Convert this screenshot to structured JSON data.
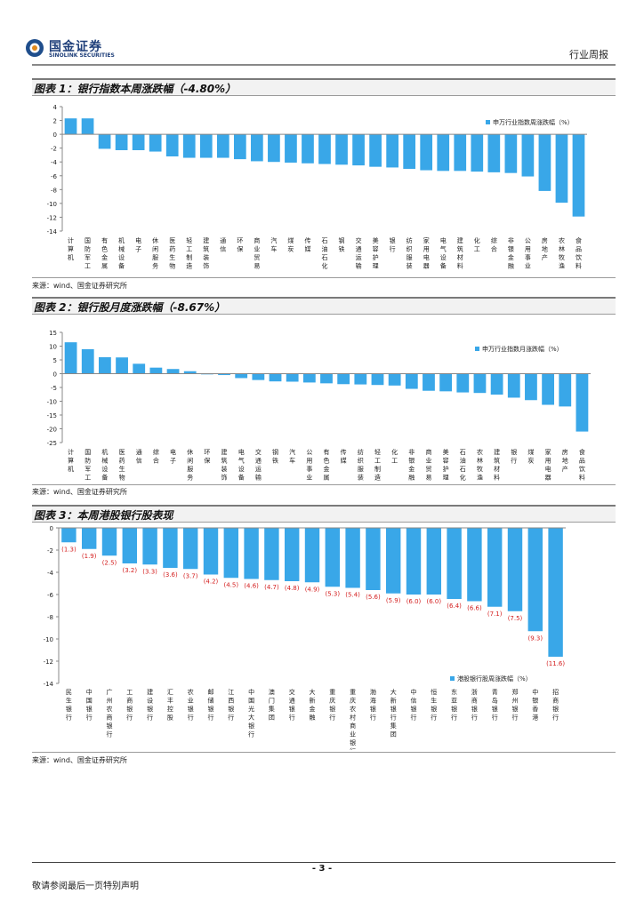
{
  "header": {
    "logo_cn": "国金证券",
    "logo_en": "SINOLINK SECURITIES",
    "report_type": "行业周报"
  },
  "figure1": {
    "title": "图表 1：银行指数本周涨跌幅（-4.80%）",
    "source": "来源：wind、国金证券研究所"
  },
  "figure2": {
    "title": "图表 2：银行股月度涨跌幅（-8.67%）",
    "source": "来源：wind、国金证券研究所"
  },
  "figure3": {
    "title": "图表 3：本周港股银行股表现",
    "source": "来源：wind、国金证券研究所"
  },
  "footer": {
    "page_number": "- 3 -",
    "disclaimer": "敬请参阅最后一页特别声明"
  },
  "colors": {
    "bar": "#39a7e8",
    "label_red": "#d42020"
  },
  "chart_data": [
    {
      "type": "bar",
      "title": "银行指数本周涨跌幅（-4.80%）",
      "legend": "申万行业指数周涨跌幅（%）",
      "legend_position": "top-right",
      "ylim": [
        -14,
        4
      ],
      "yticks": [
        4,
        2,
        0,
        -2,
        -4,
        -6,
        -8,
        -10,
        -12,
        -14
      ],
      "categories": [
        "计算机",
        "国防军工",
        "有色金属",
        "机械设备",
        "电子",
        "休闲服务",
        "医药生物",
        "轻工制造",
        "建筑装饰",
        "通信",
        "环保",
        "商业贸易",
        "汽车",
        "煤炭",
        "传媒",
        "石油石化",
        "钢铁",
        "交通运输",
        "美容护理",
        "银行",
        "纺织服装",
        "家用电器",
        "电气设备",
        "建筑材料",
        "化工",
        "综合",
        "非银金融",
        "公用事业",
        "房地产",
        "农林牧渔",
        "食品饮料"
      ],
      "values": [
        2.3,
        2.3,
        -2.1,
        -2.3,
        -2.3,
        -2.5,
        -3.2,
        -3.4,
        -3.4,
        -3.4,
        -3.6,
        -3.9,
        -4.0,
        -4.1,
        -4.2,
        -4.3,
        -4.4,
        -4.5,
        -4.7,
        -4.8,
        -5.0,
        -5.2,
        -5.3,
        -5.3,
        -5.4,
        -5.5,
        -5.6,
        -6.1,
        -8.2,
        -9.9,
        -11.9
      ]
    },
    {
      "type": "bar",
      "title": "银行股月度涨跌幅（-8.67%）",
      "legend": "申万行业指数月涨跌幅（%）",
      "legend_position": "top-right",
      "ylim": [
        -25,
        15
      ],
      "yticks": [
        15,
        10,
        5,
        0,
        -5,
        -10,
        -15,
        -20,
        -25
      ],
      "categories": [
        "计算机",
        "国防军工",
        "机械设备",
        "医药生物",
        "通信",
        "综合",
        "电子",
        "休闲服务",
        "环保",
        "建筑装饰",
        "电气设备",
        "交通运输",
        "钢铁",
        "汽车",
        "公用事业",
        "有色金属",
        "传媒",
        "纺织服装",
        "轻工制造",
        "化工",
        "非银金融",
        "商业贸易",
        "美容护理",
        "石油石化",
        "农林牧渔",
        "建筑材料",
        "银行",
        "煤炭",
        "家用电器",
        "房地产",
        "食品饮料"
      ],
      "values": [
        11.4,
        8.9,
        6.0,
        5.9,
        3.6,
        2.2,
        1.7,
        0.9,
        -0.2,
        -0.5,
        -1.6,
        -2.3,
        -2.8,
        -2.9,
        -3.2,
        -3.5,
        -3.8,
        -3.9,
        -4.1,
        -4.3,
        -5.5,
        -6.2,
        -6.4,
        -6.8,
        -7.0,
        -7.6,
        -8.7,
        -9.6,
        -11.3,
        -11.9,
        -21.0
      ]
    },
    {
      "type": "bar",
      "title": "本周港股银行股表现",
      "legend": "港股银行股周涨跌幅（%）",
      "legend_position": "bottom-right",
      "ylim": [
        -14,
        0
      ],
      "yticks": [
        0,
        -2,
        -4,
        -6,
        -8,
        -10,
        -12,
        -14
      ],
      "categories": [
        "民生银行",
        "中国银行",
        "广州农商银行",
        "工商银行",
        "建设银行",
        "汇丰控股",
        "农业银行",
        "邮储银行",
        "江西银行",
        "中国光大银行",
        "澳门集团",
        "交通银行",
        "大新金融",
        "重庆银行",
        "重庆农村商业银行",
        "渤海银行",
        "大新银行集团",
        "中信银行",
        "恒生银行",
        "东亚银行",
        "浙商银行",
        "青岛银行",
        "郑州银行",
        "中银香港",
        "招商银行"
      ],
      "values": [
        -1.3,
        -1.9,
        -2.5,
        -3.2,
        -3.3,
        -3.6,
        -3.7,
        -4.2,
        -4.5,
        -4.6,
        -4.7,
        -4.8,
        -4.9,
        -5.3,
        -5.4,
        -5.6,
        -5.9,
        -6.0,
        -6.0,
        -6.4,
        -6.6,
        -7.1,
        -7.5,
        -9.3,
        -11.6
      ],
      "data_labels": [
        "(1.3)",
        "(1.9)",
        "(2.5)",
        "(3.2)",
        "(3.3)",
        "(3.6)",
        "(3.7)",
        "(4.2)",
        "(4.5)",
        "(4.6)",
        "(4.7)",
        "(4.8)",
        "(4.9)",
        "(5.3)",
        "(5.4)",
        "(5.6)",
        "(5.9)",
        "(6.0)",
        "(6.0)",
        "(6.4)",
        "(6.6)",
        "(7.1)",
        "(7.5)",
        "(9.3)",
        "(11.6)"
      ]
    }
  ]
}
